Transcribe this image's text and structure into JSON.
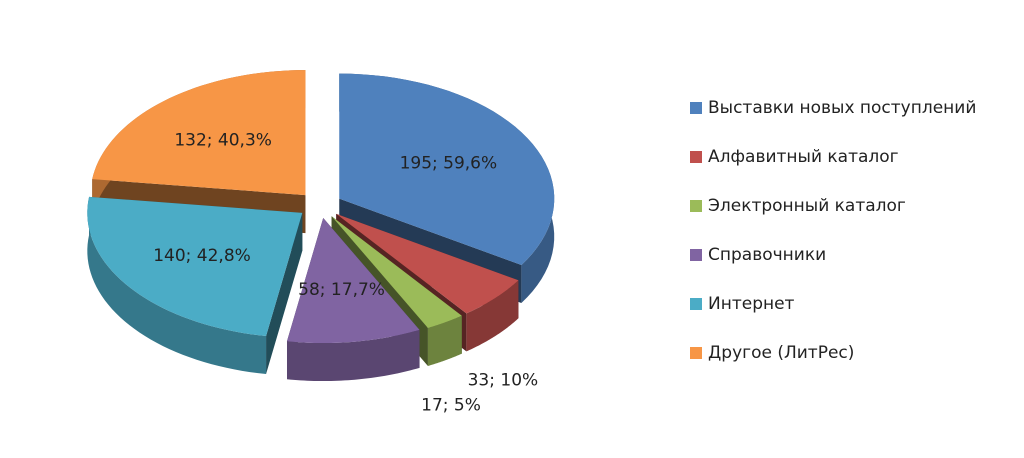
{
  "chart_data": {
    "type": "pie",
    "categories": [
      "Выставки новых поступлений",
      "Алфавитный каталог",
      "Электронный каталог",
      "Справочники",
      "Интернет",
      "Другое (ЛитРес)"
    ],
    "values": [
      195,
      33,
      17,
      58,
      140,
      132
    ],
    "value_labels": [
      "195; 59,6%",
      "33; 10%",
      "17; 5%",
      "58; 17,7%",
      "140; 42,8%",
      "132; 40,3%"
    ],
    "colors": [
      "#4f81bd",
      "#c0504d",
      "#9bbb59",
      "#8064a2",
      "#4bacc6",
      "#f79646"
    ],
    "legend": "right"
  }
}
